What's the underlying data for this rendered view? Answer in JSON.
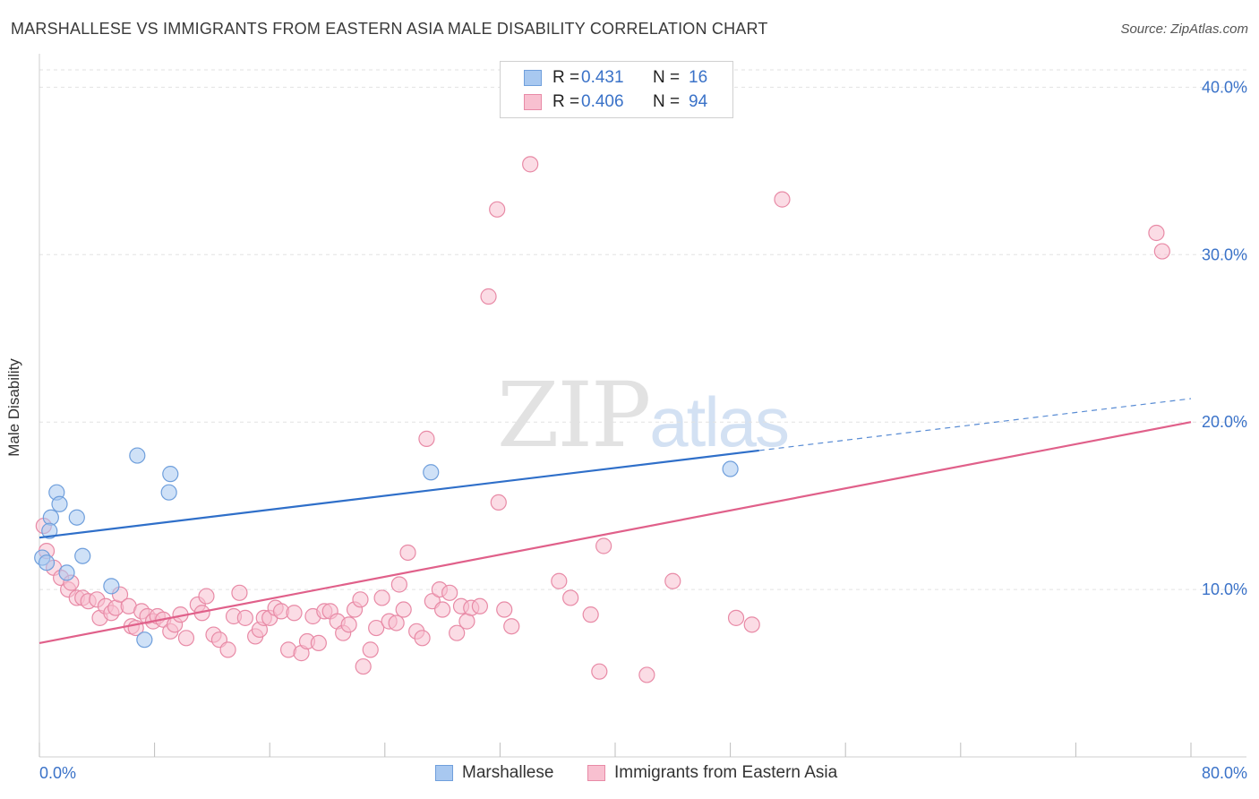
{
  "header": {
    "title": "MARSHALLESE VS IMMIGRANTS FROM EASTERN ASIA MALE DISABILITY CORRELATION CHART",
    "source": "Source: ZipAtlas.com"
  },
  "watermark": {
    "zip": "ZIP",
    "atlas": "atlas"
  },
  "legend_top": {
    "rows": [
      {
        "r_label": "R =",
        "r_value": "0.431",
        "n_label": "N =",
        "n_value": "16",
        "color": "#a8c8f0",
        "border": "#6f9fdc"
      },
      {
        "r_label": "R =",
        "r_value": "0.406",
        "n_label": "N =",
        "n_value": "94",
        "color": "#f8c0d0",
        "border": "#e88aa6"
      }
    ]
  },
  "legend_bottom": [
    {
      "label": "Marshallese",
      "color": "#a8c8f0",
      "border": "#6f9fdc"
    },
    {
      "label": "Immigrants from Eastern Asia",
      "color": "#f8c0d0",
      "border": "#e88aa6"
    }
  ],
  "chart_data": {
    "type": "scatter",
    "title": "MARSHALLESE VS IMMIGRANTS FROM EASTERN ASIA MALE DISABILITY CORRELATION CHART",
    "xlabel": "",
    "ylabel": "Male Disability",
    "xlim": [
      0,
      80
    ],
    "ylim": [
      0,
      42
    ],
    "x_tick_labels": [
      "0.0%",
      "80.0%"
    ],
    "y_ticks": [
      10,
      20,
      30,
      40
    ],
    "y_tick_labels": [
      "10.0%",
      "20.0%",
      "30.0%",
      "40.0%"
    ],
    "grid": true,
    "legend": "top-center",
    "series": [
      {
        "name": "Marshallese",
        "color": "#a8c8f0",
        "stroke": "#6f9fdc",
        "line_color": "#2f6fc9",
        "trend": {
          "x0": 0,
          "y0": 13.1,
          "x1": 50,
          "y1": 18.3,
          "dash_to_x": 80,
          "dash_to_y": 21.4
        },
        "points": [
          [
            0.2,
            11.9
          ],
          [
            0.5,
            11.6
          ],
          [
            0.8,
            14.3
          ],
          [
            0.7,
            13.5
          ],
          [
            1.2,
            15.8
          ],
          [
            1.4,
            15.1
          ],
          [
            2.6,
            14.3
          ],
          [
            3.0,
            12.0
          ],
          [
            1.9,
            11.0
          ],
          [
            5.0,
            10.2
          ],
          [
            6.8,
            18.0
          ],
          [
            7.3,
            7.0
          ],
          [
            9.1,
            16.9
          ],
          [
            9.0,
            15.8
          ],
          [
            27.2,
            17.0
          ],
          [
            48.0,
            17.2
          ]
        ]
      },
      {
        "name": "Immigrants from Eastern Asia",
        "color": "#f8c0d0",
        "stroke": "#e88aa6",
        "line_color": "#e0608a",
        "trend": {
          "x0": 0,
          "y0": 6.8,
          "x1": 80,
          "y1": 20.0
        },
        "points": [
          [
            0.3,
            13.8
          ],
          [
            0.5,
            12.3
          ],
          [
            1.0,
            11.3
          ],
          [
            1.5,
            10.7
          ],
          [
            2.0,
            10.0
          ],
          [
            2.2,
            10.4
          ],
          [
            2.6,
            9.5
          ],
          [
            3.0,
            9.5
          ],
          [
            3.4,
            9.3
          ],
          [
            4.0,
            9.4
          ],
          [
            4.2,
            8.3
          ],
          [
            4.6,
            9.0
          ],
          [
            5.0,
            8.6
          ],
          [
            5.3,
            8.9
          ],
          [
            5.6,
            9.7
          ],
          [
            6.2,
            9.0
          ],
          [
            6.4,
            7.8
          ],
          [
            6.7,
            7.7
          ],
          [
            7.1,
            8.7
          ],
          [
            7.5,
            8.4
          ],
          [
            7.9,
            8.1
          ],
          [
            8.2,
            8.4
          ],
          [
            8.6,
            8.2
          ],
          [
            9.1,
            7.5
          ],
          [
            9.4,
            7.9
          ],
          [
            9.8,
            8.5
          ],
          [
            10.2,
            7.1
          ],
          [
            11.0,
            9.1
          ],
          [
            11.3,
            8.6
          ],
          [
            11.6,
            9.6
          ],
          [
            12.1,
            7.3
          ],
          [
            12.5,
            7.0
          ],
          [
            13.1,
            6.4
          ],
          [
            13.5,
            8.4
          ],
          [
            13.9,
            9.8
          ],
          [
            14.3,
            8.3
          ],
          [
            15.0,
            7.2
          ],
          [
            15.3,
            7.6
          ],
          [
            15.6,
            8.3
          ],
          [
            16.0,
            8.3
          ],
          [
            16.4,
            8.9
          ],
          [
            16.8,
            8.7
          ],
          [
            17.3,
            6.4
          ],
          [
            17.7,
            8.6
          ],
          [
            18.2,
            6.2
          ],
          [
            18.6,
            6.9
          ],
          [
            19.0,
            8.4
          ],
          [
            19.4,
            6.8
          ],
          [
            19.8,
            8.7
          ],
          [
            20.2,
            8.7
          ],
          [
            20.7,
            8.1
          ],
          [
            21.1,
            7.4
          ],
          [
            21.5,
            7.9
          ],
          [
            21.9,
            8.8
          ],
          [
            22.3,
            9.4
          ],
          [
            22.5,
            5.4
          ],
          [
            23.0,
            6.4
          ],
          [
            23.4,
            7.7
          ],
          [
            23.8,
            9.5
          ],
          [
            24.3,
            8.1
          ],
          [
            24.8,
            8.0
          ],
          [
            25.3,
            8.8
          ],
          [
            25.0,
            10.3
          ],
          [
            25.6,
            12.2
          ],
          [
            26.2,
            7.5
          ],
          [
            26.6,
            7.1
          ],
          [
            26.9,
            19.0
          ],
          [
            27.3,
            9.3
          ],
          [
            27.8,
            10.0
          ],
          [
            28.0,
            8.8
          ],
          [
            28.5,
            9.8
          ],
          [
            29.0,
            7.4
          ],
          [
            29.3,
            9.0
          ],
          [
            29.7,
            8.1
          ],
          [
            30.0,
            8.9
          ],
          [
            30.6,
            9.0
          ],
          [
            31.2,
            27.5
          ],
          [
            31.8,
            32.7
          ],
          [
            31.9,
            15.2
          ],
          [
            32.3,
            8.8
          ],
          [
            32.8,
            7.8
          ],
          [
            34.1,
            35.4
          ],
          [
            36.1,
            10.5
          ],
          [
            36.9,
            9.5
          ],
          [
            38.3,
            8.5
          ],
          [
            38.9,
            5.1
          ],
          [
            39.2,
            12.6
          ],
          [
            42.2,
            4.9
          ],
          [
            44.0,
            10.5
          ],
          [
            48.4,
            8.3
          ],
          [
            49.5,
            7.9
          ],
          [
            51.6,
            33.3
          ],
          [
            77.6,
            31.3
          ],
          [
            78.0,
            30.2
          ]
        ]
      }
    ]
  }
}
